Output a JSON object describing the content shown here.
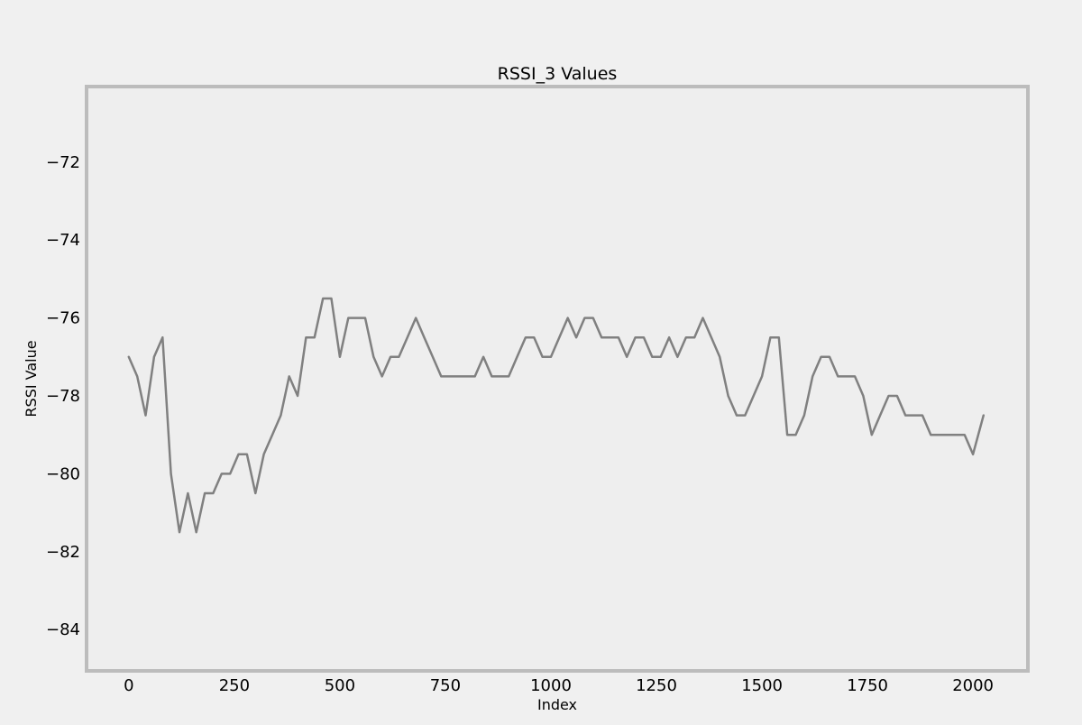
{
  "chart_data": {
    "type": "line",
    "title": "RSSI_3 Values",
    "xlabel": "Index",
    "ylabel": "RSSI Value",
    "xlim": [
      -100,
      2130
    ],
    "ylim": [
      -85.06,
      -70.06
    ],
    "xticks": [
      0,
      250,
      500,
      750,
      1000,
      1250,
      1500,
      1750,
      2000
    ],
    "yticks": [
      -84,
      -82,
      -80,
      -78,
      -76,
      -74,
      -72
    ],
    "xtick_labels": [
      "0",
      "250",
      "500",
      "750",
      "1000",
      "1250",
      "1500",
      "1750",
      "2000"
    ],
    "ytick_labels": [
      "−84",
      "−82",
      "−80",
      "−78",
      "−76",
      "−74",
      "−72"
    ],
    "grid": false,
    "legend": "none",
    "colors": {
      "figure_background": "#f0f0f0",
      "axes_background": "#eeeeee",
      "axes_frame": "#bcbcbc",
      "line": "#808080"
    },
    "series": [
      {
        "x": [
          0,
          20,
          40,
          60,
          80,
          100,
          120,
          140,
          160,
          180,
          200,
          220,
          240,
          260,
          280,
          300,
          320,
          340,
          360,
          380,
          400,
          420,
          440,
          460,
          480,
          500,
          520,
          540,
          560,
          580,
          600,
          620,
          640,
          660,
          680,
          700,
          720,
          740,
          760,
          780,
          800,
          820,
          840,
          860,
          880,
          900,
          920,
          940,
          960,
          980,
          1000,
          1020,
          1040,
          1060,
          1080,
          1100,
          1120,
          1140,
          1160,
          1180,
          1200,
          1220,
          1240,
          1260,
          1280,
          1300,
          1320,
          1340,
          1360,
          1380,
          1400,
          1420,
          1440,
          1460,
          1480,
          1500,
          1520,
          1540,
          1560,
          1580,
          1600,
          1620,
          1640,
          1660,
          1680,
          1700,
          1720,
          1740,
          1760,
          1780,
          1800,
          1820,
          1840,
          1860,
          1880,
          1900,
          1920,
          1940,
          1960,
          1980,
          2000,
          2025
        ],
        "y": [
          -77.0,
          -77.5,
          -78.5,
          -77.0,
          -76.5,
          -80.0,
          -81.5,
          -80.5,
          -81.5,
          -80.5,
          -80.5,
          -80.0,
          -80.0,
          -79.5,
          -79.5,
          -80.5,
          -79.5,
          -79.0,
          -78.5,
          -77.5,
          -78.0,
          -76.5,
          -76.5,
          -75.5,
          -75.5,
          -77.0,
          -76.0,
          -76.0,
          -76.0,
          -77.0,
          -77.5,
          -77.0,
          -77.0,
          -76.5,
          -76.0,
          -76.5,
          -77.0,
          -77.5,
          -77.5,
          -77.5,
          -77.5,
          -77.5,
          -77.0,
          -77.5,
          -77.5,
          -77.5,
          -77.0,
          -76.5,
          -76.5,
          -77.0,
          -77.0,
          -76.5,
          -76.0,
          -76.5,
          -76.0,
          -76.0,
          -76.5,
          -76.5,
          -76.5,
          -77.0,
          -76.5,
          -76.5,
          -77.0,
          -77.0,
          -76.5,
          -77.0,
          -76.5,
          -76.5,
          -76.0,
          -76.5,
          -77.0,
          -78.0,
          -78.5,
          -78.5,
          -78.0,
          -77.5,
          -76.5,
          -76.5,
          -79.0,
          -79.0,
          -78.5,
          -77.5,
          -77.0,
          -77.0,
          -77.5,
          -77.5,
          -77.5,
          -78.0,
          -79.0,
          -78.5,
          -78.0,
          -78.0,
          -78.5,
          -78.5,
          -78.5,
          -79.0,
          -79.0,
          -79.0,
          -79.0,
          -79.0,
          -79.5,
          -78.5
        ]
      }
    ]
  }
}
